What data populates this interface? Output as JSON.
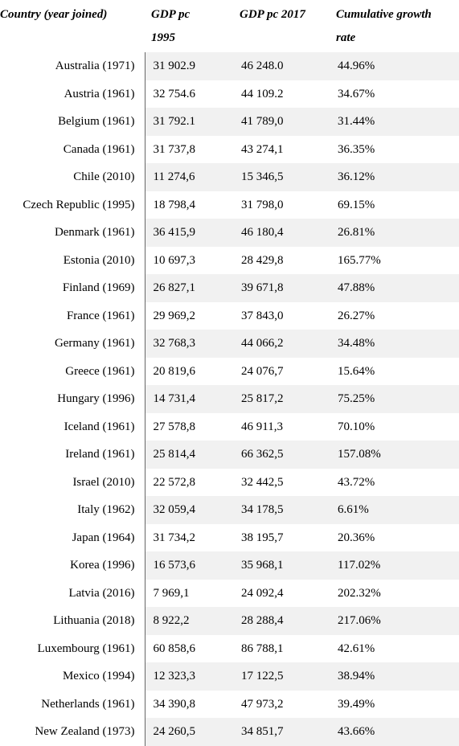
{
  "table": {
    "type": "table",
    "background_color": "#ffffff",
    "alt_row_color": "#f1f1f1",
    "border_color": "#666666",
    "font_family": "Times New Roman",
    "header_fontsize": 15,
    "cell_fontsize": 15,
    "columns": [
      {
        "label_line1": "Country (year joined)",
        "label_line2": "",
        "align": "right",
        "width": 180
      },
      {
        "label_line1": "GDP pc",
        "label_line2": "1995",
        "align": "left",
        "width": 110
      },
      {
        "label_line1": "GDP pc 2017",
        "label_line2": "",
        "align": "left",
        "width": 120
      },
      {
        "label_line1": "Cumulative growth",
        "label_line2": "rate",
        "align": "left",
        "width": 161
      }
    ],
    "rows": [
      {
        "country": "Australia (1971)",
        "gdp1995": "31 902.9",
        "gdp2017": "46 248.0",
        "growth": "44.96%"
      },
      {
        "country": "Austria (1961)",
        "gdp1995": "32 754.6",
        "gdp2017": "44 109.2",
        "growth": "34.67%"
      },
      {
        "country": "Belgium (1961)",
        "gdp1995": "31 792.1",
        "gdp2017": "41 789,0",
        "growth": "31.44%"
      },
      {
        "country": "Canada (1961)",
        "gdp1995": "31 737,8",
        "gdp2017": "43 274,1",
        "growth": "36.35%"
      },
      {
        "country": "Chile (2010)",
        "gdp1995": "11 274,6",
        "gdp2017": "15 346,5",
        "growth": "36.12%"
      },
      {
        "country": "Czech Republic (1995)",
        "gdp1995": "18 798,4",
        "gdp2017": "31 798,0",
        "growth": "69.15%"
      },
      {
        "country": "Denmark (1961)",
        "gdp1995": "36 415,9",
        "gdp2017": "46 180,4",
        "growth": "26.81%"
      },
      {
        "country": "Estonia (2010)",
        "gdp1995": "10 697,3",
        "gdp2017": "28 429,8",
        "growth": "165.77%"
      },
      {
        "country": "Finland (1969)",
        "gdp1995": "26 827,1",
        "gdp2017": "39 671,8",
        "growth": "47.88%"
      },
      {
        "country": "France (1961)",
        "gdp1995": "29 969,2",
        "gdp2017": "37 843,0",
        "growth": "26.27%"
      },
      {
        "country": "Germany (1961)",
        "gdp1995": "32 768,3",
        "gdp2017": "44 066,2",
        "growth": "34.48%"
      },
      {
        "country": "Greece (1961)",
        "gdp1995": "20 819,6",
        "gdp2017": "24 076,7",
        "growth": "15.64%"
      },
      {
        "country": "Hungary (1996)",
        "gdp1995": "14 731,4",
        "gdp2017": "25 817,2",
        "growth": "75.25%"
      },
      {
        "country": "Iceland (1961)",
        "gdp1995": "27 578,8",
        "gdp2017": "46 911,3",
        "growth": "70.10%"
      },
      {
        "country": "Ireland (1961)",
        "gdp1995": "25 814,4",
        "gdp2017": "66 362,5",
        "growth": "157.08%"
      },
      {
        "country": "Israel (2010)",
        "gdp1995": "22 572,8",
        "gdp2017": "32 442,5",
        "growth": "43.72%"
      },
      {
        "country": "Italy (1962)",
        "gdp1995": "32 059,4",
        "gdp2017": "34 178,5",
        "growth": "6.61%"
      },
      {
        "country": "Japan (1964)",
        "gdp1995": "31 734,2",
        "gdp2017": "38 195,7",
        "growth": "20.36%"
      },
      {
        "country": "Korea (1996)",
        "gdp1995": "16 573,6",
        "gdp2017": "35 968,1",
        "growth": "117.02%"
      },
      {
        "country": "Latvia (2016)",
        "gdp1995": "7 969,1",
        "gdp2017": "24 092,4",
        "growth": "202.32%"
      },
      {
        "country": "Lithuania (2018)",
        "gdp1995": "8 922,2",
        "gdp2017": "28 288,4",
        "growth": "217.06%"
      },
      {
        "country": "Luxembourg (1961)",
        "gdp1995": "60 858,6",
        "gdp2017": "86 788,1",
        "growth": "42.61%"
      },
      {
        "country": "Mexico (1994)",
        "gdp1995": "12 323,3",
        "gdp2017": "17 122,5",
        "growth": "38.94%"
      },
      {
        "country": "Netherlands (1961)",
        "gdp1995": "34 390,8",
        "gdp2017": "47 973,2",
        "growth": "39.49%"
      },
      {
        "country": "New Zealand (1973)",
        "gdp1995": "24 260,5",
        "gdp2017": "34 851,7",
        "growth": "43.66%"
      }
    ]
  }
}
